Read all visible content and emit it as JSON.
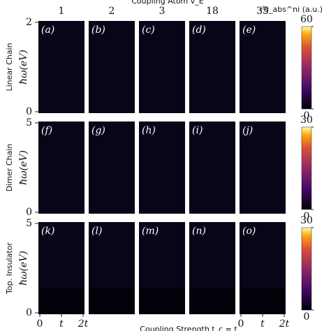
{
  "header": {
    "title": "Coupling Atom v_E",
    "columns": [
      1,
      2,
      3,
      18,
      35
    ],
    "colorbar_label": "√σ_abs^ni (a.u.)"
  },
  "rows": [
    {
      "name": "Linear Chain",
      "panels": [
        "(a)",
        "(b)",
        "(c)",
        "(d)",
        "(e)"
      ],
      "yticks": [
        0,
        2
      ],
      "colorbar_ticks": [
        0,
        60
      ]
    },
    {
      "name": "Dimer Chain",
      "panels": [
        "(f)",
        "(g)",
        "(h)",
        "(i)",
        "(j)"
      ],
      "yticks": [
        0,
        5
      ],
      "colorbar_ticks": [
        0,
        30
      ]
    },
    {
      "name": "Top. Insulator",
      "panels": [
        "(k)",
        "(l)",
        "(m)",
        "(n)",
        "(o)"
      ],
      "yticks": [
        0,
        5
      ],
      "colorbar_ticks": [
        0,
        30
      ]
    }
  ],
  "y_label": "ħω(eV)",
  "x_label": "Coupling Strength t_c = t",
  "xticks": [
    "0",
    "t",
    "2t"
  ]
}
